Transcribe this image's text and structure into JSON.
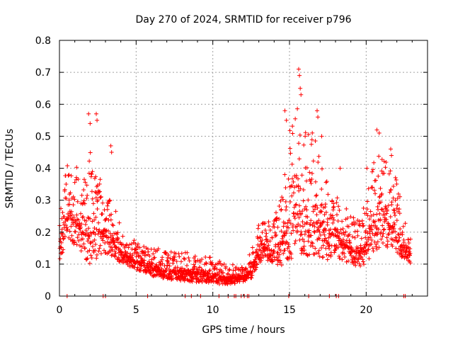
{
  "chart_data": {
    "type": "scatter",
    "title": "Day 270 of 2024, SRMTID for receiver p796",
    "xlabel": "GPS time / hours",
    "ylabel": "SRMTID / TECUs",
    "xlim": [
      0,
      24
    ],
    "ylim": [
      0,
      0.8
    ],
    "x_ticks": [
      0,
      5,
      10,
      15,
      20
    ],
    "y_ticks": [
      0,
      0.1,
      0.2,
      0.3,
      0.4,
      0.5,
      0.6,
      0.7,
      0.8
    ],
    "x_tick_labels": [
      "0",
      "5",
      "10",
      "15",
      "20"
    ],
    "y_tick_labels": [
      "0",
      "0.1",
      "0.2",
      "0.3",
      "0.4",
      "0.5",
      "0.6",
      "0.7",
      "0.8"
    ],
    "grid": true,
    "marker": "plus",
    "color": "#ff0000",
    "series_envelope": {
      "description": "approximate median and upper spread of the dense point cloud",
      "x": [
        0.0,
        0.5,
        1.0,
        1.5,
        2.0,
        2.5,
        3.0,
        3.5,
        4.0,
        4.5,
        5.0,
        6.0,
        7.0,
        8.0,
        9.0,
        10.0,
        11.0,
        12.0,
        12.5,
        13.0,
        13.5,
        14.0,
        14.5,
        15.0,
        15.5,
        16.0,
        16.5,
        17.0,
        17.5,
        18.0,
        18.5,
        19.0,
        19.5,
        20.0,
        20.5,
        21.0,
        21.5,
        22.0,
        22.5,
        22.9
      ],
      "median": [
        0.15,
        0.25,
        0.24,
        0.2,
        0.2,
        0.21,
        0.19,
        0.17,
        0.14,
        0.12,
        0.11,
        0.09,
        0.08,
        0.075,
        0.07,
        0.065,
        0.055,
        0.06,
        0.08,
        0.14,
        0.15,
        0.14,
        0.17,
        0.24,
        0.26,
        0.22,
        0.24,
        0.23,
        0.18,
        0.2,
        0.16,
        0.15,
        0.13,
        0.16,
        0.22,
        0.24,
        0.22,
        0.2,
        0.15,
        0.13
      ],
      "spread": [
        0.05,
        0.08,
        0.09,
        0.07,
        0.12,
        0.1,
        0.07,
        0.06,
        0.04,
        0.03,
        0.03,
        0.03,
        0.03,
        0.03,
        0.03,
        0.03,
        0.02,
        0.02,
        0.03,
        0.04,
        0.04,
        0.05,
        0.09,
        0.14,
        0.16,
        0.14,
        0.13,
        0.12,
        0.08,
        0.08,
        0.06,
        0.05,
        0.05,
        0.07,
        0.1,
        0.1,
        0.09,
        0.08,
        0.04,
        0.03
      ]
    },
    "peaks": [
      {
        "x": 1.9,
        "y": 0.57
      },
      {
        "x": 2.0,
        "y": 0.54
      },
      {
        "x": 2.4,
        "y": 0.57
      },
      {
        "x": 2.45,
        "y": 0.55
      },
      {
        "x": 3.35,
        "y": 0.47
      },
      {
        "x": 3.4,
        "y": 0.45
      },
      {
        "x": 14.7,
        "y": 0.58
      },
      {
        "x": 14.8,
        "y": 0.55
      },
      {
        "x": 15.6,
        "y": 0.71
      },
      {
        "x": 15.65,
        "y": 0.69
      },
      {
        "x": 15.7,
        "y": 0.65
      },
      {
        "x": 15.75,
        "y": 0.63
      },
      {
        "x": 16.8,
        "y": 0.58
      },
      {
        "x": 16.85,
        "y": 0.56
      },
      {
        "x": 17.1,
        "y": 0.5
      },
      {
        "x": 18.3,
        "y": 0.4
      },
      {
        "x": 20.05,
        "y": 0.4
      },
      {
        "x": 20.7,
        "y": 0.52
      },
      {
        "x": 20.85,
        "y": 0.51
      },
      {
        "x": 21.6,
        "y": 0.46
      },
      {
        "x": 21.65,
        "y": 0.44
      }
    ],
    "zero_markers": [
      0.5,
      2.85,
      3.0,
      5.75,
      8.2,
      8.6,
      9.2,
      10.4,
      11.0,
      11.4,
      11.5,
      11.85,
      12.05,
      12.25,
      12.35,
      14.95,
      16.25,
      17.6,
      18.05,
      18.2,
      22.45,
      22.55
    ]
  }
}
